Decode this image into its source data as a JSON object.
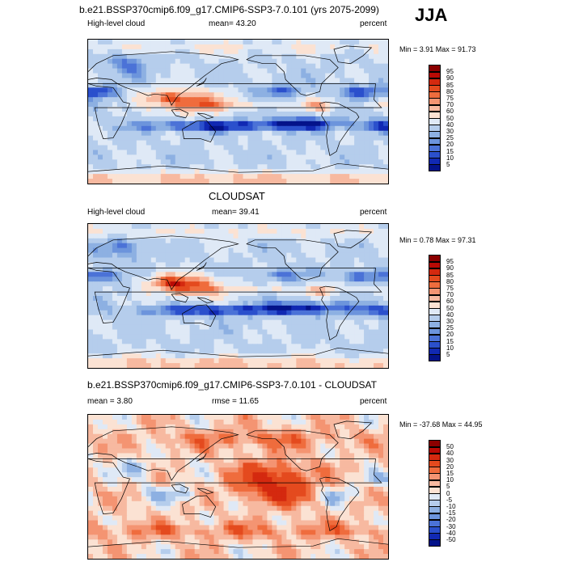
{
  "season": "JJA",
  "panels": [
    {
      "title": "b.e21.BSSP370cmip6.f09_g17.CMIP6-SSP3-7.0.101 (yrs 2075-2099)",
      "left_label": "High-level cloud",
      "center_label": "mean=  43.20",
      "right_label": "percent",
      "minmax": "Min =   3.91 Max =  91.73",
      "scale": "abs"
    },
    {
      "title": "CLOUDSAT",
      "left_label": "High-level cloud",
      "center_label": "mean=  39.41",
      "right_label": "percent",
      "minmax": "Min =   0.78 Max =  97.31",
      "scale": "abs"
    },
    {
      "title": "b.e21.BSSP370cmip6.f09_g17.CMIP6-SSP3-7.0.101 - CLOUDSAT",
      "left_label": "mean =   3.80",
      "center_label": "rmse =  11.65",
      "right_label": "percent",
      "minmax": "Min = -37.68 Max =  44.95",
      "scale": "diff"
    }
  ],
  "chart_data": [
    {
      "type": "heatmap",
      "title": "b.e21.BSSP370cmip6.f09_g17.CMIP6-SSP3-7.0.101 (yrs 2075-2099)",
      "variable": "High-level cloud",
      "units": "percent",
      "mean": 43.2,
      "min": 3.91,
      "max": 91.73,
      "colorbar_levels": [
        5,
        10,
        15,
        20,
        25,
        30,
        40,
        50,
        60,
        70,
        75,
        80,
        85,
        90,
        95
      ],
      "projection": "cylindrical equidistant, centered 180"
    },
    {
      "type": "heatmap",
      "title": "CLOUDSAT",
      "variable": "High-level cloud",
      "units": "percent",
      "mean": 39.41,
      "min": 0.78,
      "max": 97.31,
      "colorbar_levels": [
        5,
        10,
        15,
        20,
        25,
        30,
        40,
        50,
        60,
        70,
        75,
        80,
        85,
        90,
        95
      ],
      "projection": "cylindrical equidistant, centered 180"
    },
    {
      "type": "heatmap",
      "title": "b.e21.BSSP370cmip6.f09_g17.CMIP6-SSP3-7.0.101 - CLOUDSAT",
      "variable": "difference",
      "units": "percent",
      "mean": 3.8,
      "rmse": 11.65,
      "min": -37.68,
      "max": 44.95,
      "colorbar_levels": [
        -50,
        -40,
        -30,
        -20,
        -15,
        -10,
        -5,
        0,
        5,
        10,
        15,
        20,
        30,
        40,
        50
      ],
      "projection": "cylindrical equidistant, centered 180"
    }
  ],
  "colorbars": {
    "abs": {
      "labels": [
        "95",
        "90",
        "85",
        "80",
        "75",
        "70",
        "60",
        "50",
        "40",
        "30",
        "25",
        "20",
        "15",
        "10",
        "5"
      ],
      "colors": [
        "#8b0000",
        "#b80a05",
        "#d4290f",
        "#e44a1e",
        "#ef6c3d",
        "#f49472",
        "#f7b9a0",
        "#fbe2d3",
        "#dfe9f6",
        "#b5cdec",
        "#8db0e2",
        "#6c94dc",
        "#4b72d7",
        "#2b50cc",
        "#1129b3",
        "#04138a"
      ]
    },
    "diff": {
      "labels": [
        "50",
        "40",
        "30",
        "20",
        "15",
        "10",
        "5",
        "0",
        "-5",
        "-10",
        "-15",
        "-20",
        "-30",
        "-40",
        "-50"
      ],
      "colors": [
        "#8b0000",
        "#b80a05",
        "#d4290f",
        "#e44a1e",
        "#ef6c3d",
        "#f49472",
        "#f7b9a0",
        "#fbe2d3",
        "#dfe9f6",
        "#b5cdec",
        "#8db0e2",
        "#6c94dc",
        "#4b72d7",
        "#2b50cc",
        "#1129b3",
        "#04138a"
      ]
    }
  }
}
